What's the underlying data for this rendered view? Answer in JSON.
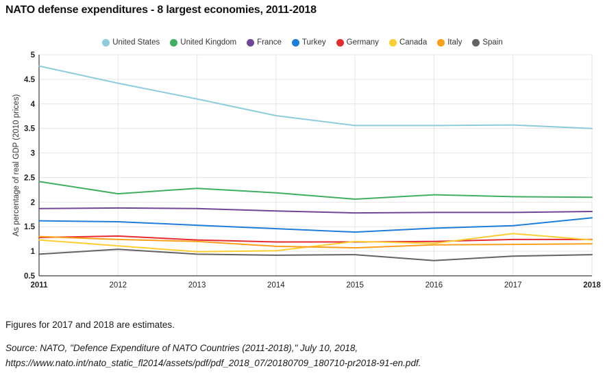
{
  "title": "NATO defense expenditures - 8 largest economies, 2011-2018",
  "footnote": "Figures for 2017 and 2018 are estimates.",
  "source": {
    "line1": "Source: NATO, \"Defence Expenditure of NATO Countries (2011-2018),\" July 10, 2018,",
    "line2": "https://www.nato.int/nato_static_fl2014/assets/pdf/pdf_2018_07/20180709_180710-pr2018-91-en.pdf."
  },
  "chart_data": {
    "type": "line",
    "title": "NATO defense expenditures - 8 largest economies, 2011-2018",
    "xlabel": "",
    "ylabel": "As percentage of real GDP (2010 prices)",
    "x": [
      2011,
      2012,
      2013,
      2014,
      2015,
      2016,
      2017,
      2018
    ],
    "x_labels": [
      "2011",
      "2012",
      "2013",
      "2014",
      "2015",
      "2016",
      "2017",
      "2018"
    ],
    "ylim": [
      0.5,
      5
    ],
    "ytick_step": 0.5,
    "y_ticks": [
      "0.5",
      "1",
      "1.5",
      "2",
      "2.5",
      "3",
      "3.5",
      "4",
      "4.5",
      "5"
    ],
    "grid": true,
    "legend_position": "top",
    "series": [
      {
        "name": "United States",
        "color": "#8ecbdb",
        "values": [
          4.77,
          4.42,
          4.1,
          3.76,
          3.56,
          3.56,
          3.57,
          3.5
        ]
      },
      {
        "name": "United Kingdom",
        "color": "#3fae61",
        "values": [
          2.42,
          2.17,
          2.28,
          2.19,
          2.06,
          2.15,
          2.11,
          2.1
        ]
      },
      {
        "name": "France",
        "color": "#6f4596",
        "values": [
          1.87,
          1.88,
          1.87,
          1.82,
          1.78,
          1.79,
          1.79,
          1.81
        ]
      },
      {
        "name": "Turkey",
        "color": "#1d7dd8",
        "values": [
          1.62,
          1.6,
          1.53,
          1.46,
          1.39,
          1.47,
          1.52,
          1.68
        ]
      },
      {
        "name": "Germany",
        "color": "#e32b30",
        "values": [
          1.28,
          1.31,
          1.23,
          1.19,
          1.19,
          1.2,
          1.24,
          1.24
        ]
      },
      {
        "name": "Canada",
        "color": "#fbce32",
        "values": [
          1.23,
          1.11,
          0.99,
          1.01,
          1.2,
          1.16,
          1.36,
          1.23
        ]
      },
      {
        "name": "Italy",
        "color": "#fa9e1b",
        "values": [
          1.3,
          1.24,
          1.2,
          1.1,
          1.07,
          1.13,
          1.14,
          1.15
        ]
      },
      {
        "name": "Spain",
        "color": "#636363",
        "values": [
          0.94,
          1.04,
          0.94,
          0.92,
          0.93,
          0.81,
          0.9,
          0.93
        ]
      }
    ]
  },
  "colors": {
    "axis": "#3c3c3c",
    "grid": "#e5e5e5",
    "tick_text": "#222222",
    "axis_title_text": "#333333"
  }
}
